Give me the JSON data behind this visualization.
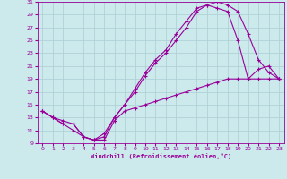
{
  "xlabel": "Windchill (Refroidissement éolien,°C)",
  "xlim": [
    -0.5,
    23.5
  ],
  "ylim": [
    9,
    31
  ],
  "xticks": [
    0,
    1,
    2,
    3,
    4,
    5,
    6,
    7,
    8,
    9,
    10,
    11,
    12,
    13,
    14,
    15,
    16,
    17,
    18,
    19,
    20,
    21,
    22,
    23
  ],
  "yticks": [
    9,
    11,
    13,
    15,
    17,
    19,
    21,
    23,
    25,
    27,
    29,
    31
  ],
  "background_color": "#cce9ec",
  "grid_color": "#aacfd4",
  "line_color": "#990099",
  "curve1_x": [
    0,
    1,
    2,
    3,
    4,
    5,
    6,
    7,
    8,
    9,
    10,
    11,
    12,
    13,
    14,
    15,
    16,
    17,
    18,
    19,
    20,
    21,
    22,
    23
  ],
  "curve1_y": [
    14,
    13,
    12.5,
    12,
    10,
    9.5,
    10.5,
    13,
    15,
    17,
    19.5,
    21.5,
    23,
    25,
    27,
    29.5,
    30.5,
    30,
    29.5,
    25,
    19,
    20.5,
    21,
    19
  ],
  "curve2_x": [
    0,
    1,
    2,
    3,
    4,
    5,
    6,
    7,
    8,
    9,
    10,
    11,
    12,
    13,
    14,
    15,
    16,
    17,
    18,
    19,
    20,
    21,
    22,
    23
  ],
  "curve2_y": [
    14,
    13,
    12,
    11,
    10,
    9.5,
    10,
    13,
    15,
    17.5,
    20,
    22,
    23.5,
    26,
    28,
    30,
    30.5,
    31,
    30.5,
    29.5,
    26,
    22,
    20,
    19
  ],
  "curve3_x": [
    0,
    1,
    2,
    3,
    4,
    5,
    6,
    7,
    8,
    9,
    10,
    11,
    12,
    13,
    14,
    15,
    16,
    17,
    18,
    19,
    20,
    21,
    22,
    23
  ],
  "curve3_y": [
    14,
    13,
    12,
    12,
    10,
    9.5,
    9.5,
    12.5,
    14,
    14.5,
    15,
    15.5,
    16,
    16.5,
    17,
    17.5,
    18,
    18.5,
    19,
    19,
    19,
    19,
    19,
    19
  ],
  "marker": "+",
  "marker_size": 3,
  "line_width": 0.8
}
